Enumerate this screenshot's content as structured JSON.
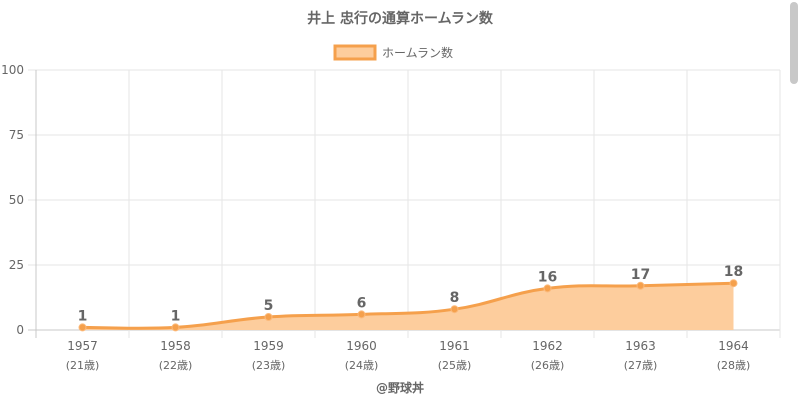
{
  "chart_data": {
    "type": "line",
    "title": "井上 忠行の通算ホームラン数",
    "categories": [
      "1957",
      "1958",
      "1959",
      "1960",
      "1961",
      "1962",
      "1963",
      "1964"
    ],
    "category_sublabels": [
      "(21歳)",
      "(22歳)",
      "(23歳)",
      "(24歳)",
      "(25歳)",
      "(26歳)",
      "(27歳)",
      "(28歳)"
    ],
    "series": [
      {
        "name": "ホームラン数",
        "values": [
          1,
          1,
          5,
          6,
          8,
          16,
          17,
          18
        ]
      }
    ],
    "ylim": [
      0,
      100
    ],
    "yticks": [
      0,
      25,
      50,
      75,
      100
    ],
    "grid": true,
    "filled": true,
    "legend_position": "top-center",
    "colors": {
      "line": "#f5a04c",
      "fill": "#fdcd9d",
      "grid": "#e6e6e6",
      "axis": "#c8c8c8",
      "text": "#666666"
    },
    "footer": "@野球丼"
  }
}
